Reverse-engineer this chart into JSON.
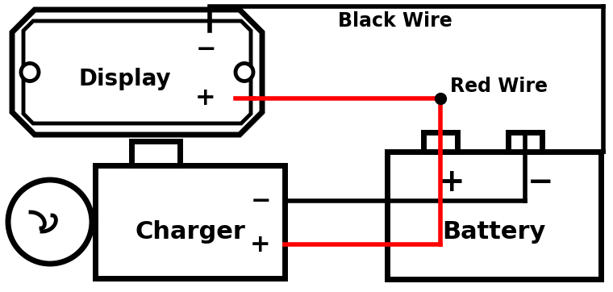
{
  "bg_color": "#ffffff",
  "lc": "#000000",
  "rc": "#ff0000",
  "lw": 3.5,
  "display_label": "Display",
  "charger_label": "Charger",
  "battery_label": "Battery",
  "black_wire_label": "Black Wire",
  "red_wire_label": "Red Wire",
  "plus": "+",
  "minus": "−",
  "fs_main": 20,
  "fs_sign": 22,
  "fs_wire": 15
}
